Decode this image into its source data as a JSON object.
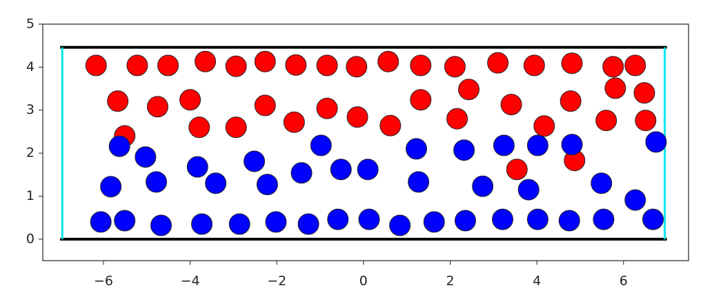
{
  "chart_data": {
    "type": "scatter",
    "xlim": [
      -7.4,
      7.5
    ],
    "ylim": [
      -0.5,
      5
    ],
    "xticks": [
      {
        "value": -6,
        "label": "−6"
      },
      {
        "value": -4,
        "label": "−4"
      },
      {
        "value": -2,
        "label": "−2"
      },
      0,
      2,
      4,
      6
    ],
    "yticks": [
      0,
      1,
      2,
      3,
      4,
      5
    ],
    "walls": [
      {
        "color": "#000000",
        "x": [
          -7,
          7
        ],
        "y": [
          0,
          0
        ]
      },
      {
        "color": "#000000",
        "x": [
          -7,
          7
        ],
        "y": [
          4.46,
          4.46
        ]
      },
      {
        "color": "#00e5ee",
        "x": [
          -6.95,
          -6.95
        ],
        "y": [
          0,
          4.46
        ]
      },
      {
        "color": "#00e5ee",
        "x": [
          6.95,
          6.95
        ],
        "y": [
          0,
          4.46
        ]
      }
    ],
    "series": [
      {
        "color": "#ff0000",
        "x": [
          -6.17,
          -5.22,
          -4.51,
          -3.65,
          -2.94,
          -2.27,
          -1.56,
          -0.84,
          -0.16,
          0.57,
          1.32,
          2.11,
          3.1,
          3.94,
          4.81,
          5.76,
          6.27,
          -5.67,
          -4.75,
          -4.0,
          -2.27,
          -0.84,
          -0.14,
          1.32,
          2.43,
          3.41,
          4.78,
          5.81,
          6.48,
          -5.51,
          -3.79,
          -2.94,
          -1.6,
          0.62,
          2.16,
          4.17,
          5.6,
          6.51,
          3.54,
          4.87
        ],
        "values": [
          4.04,
          4.04,
          4.04,
          4.13,
          4.02,
          4.13,
          4.05,
          4.04,
          4.01,
          4.13,
          4.04,
          4.01,
          4.1,
          4.04,
          4.09,
          4.01,
          4.04,
          3.21,
          3.08,
          3.24,
          3.11,
          3.04,
          2.84,
          3.24,
          3.48,
          3.13,
          3.21,
          3.51,
          3.4,
          2.4,
          2.6,
          2.6,
          2.72,
          2.64,
          2.8,
          2.63,
          2.76,
          2.76,
          1.62,
          1.83
        ]
      },
      {
        "color": "#0000ff",
        "x": [
          -5.63,
          -5.03,
          -3.83,
          -2.52,
          -0.98,
          1.22,
          2.32,
          3.24,
          4.02,
          4.81,
          6.75,
          -5.83,
          -4.78,
          -3.41,
          -2.22,
          -1.43,
          -0.52,
          0.1,
          1.27,
          2.75,
          3.81,
          5.49,
          6.27,
          -6.06,
          -5.51,
          -4.67,
          -3.73,
          -2.86,
          -2.02,
          -1.27,
          -0.59,
          0.13,
          0.84,
          1.63,
          2.35,
          3.21,
          4.02,
          4.75,
          5.54,
          6.68
        ],
        "values": [
          2.16,
          1.91,
          1.68,
          1.81,
          2.18,
          2.1,
          2.07,
          2.18,
          2.18,
          2.2,
          2.26,
          1.22,
          1.33,
          1.3,
          1.27,
          1.54,
          1.62,
          1.62,
          1.33,
          1.23,
          1.15,
          1.3,
          0.91,
          0.4,
          0.43,
          0.32,
          0.35,
          0.35,
          0.4,
          0.35,
          0.46,
          0.46,
          0.32,
          0.4,
          0.43,
          0.46,
          0.46,
          0.43,
          0.46,
          0.46
        ]
      }
    ]
  }
}
